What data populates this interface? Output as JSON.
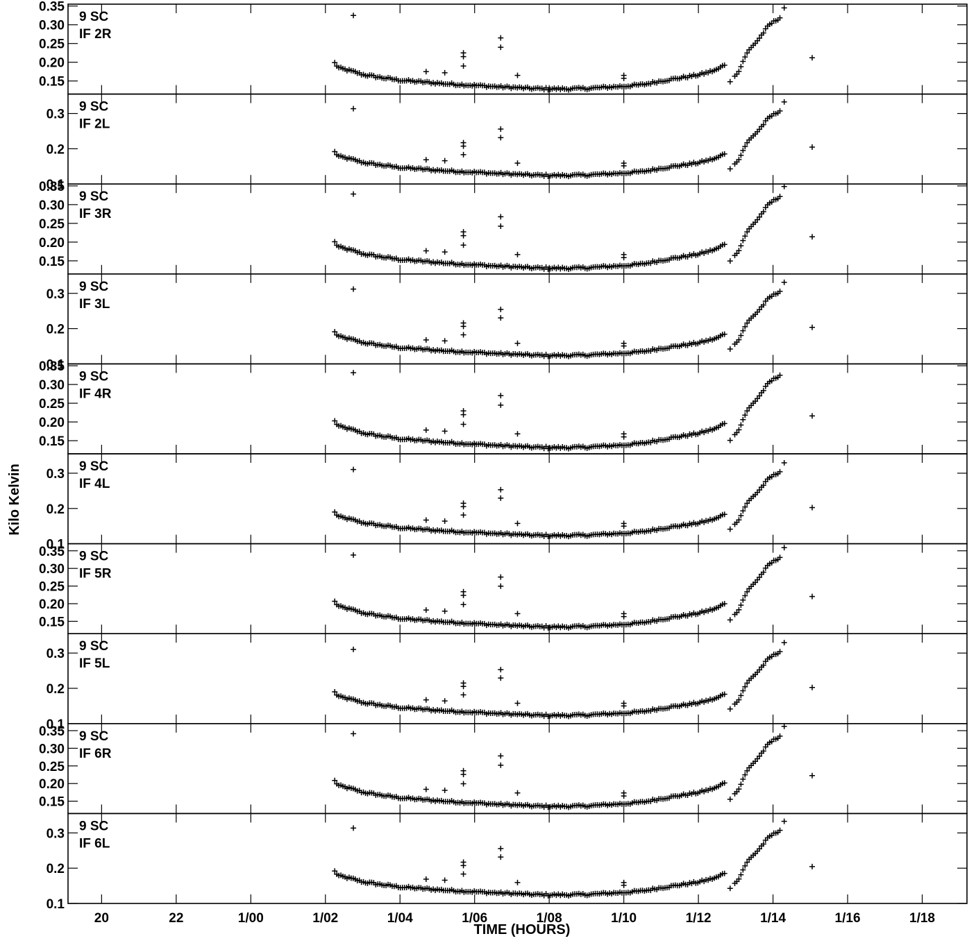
{
  "chart_data": {
    "type": "scatter",
    "marker": "plus",
    "xlabel": "TIME (HOURS)",
    "ylabel": "Kilo Kelvin",
    "x_range_hours": [
      19.1,
      43.2
    ],
    "x_ticks": [
      {
        "h": 20,
        "label": "20"
      },
      {
        "h": 22,
        "label": "22"
      },
      {
        "h": 24,
        "label": "1/00"
      },
      {
        "h": 26,
        "label": "1/02"
      },
      {
        "h": 28,
        "label": "1/04"
      },
      {
        "h": 30,
        "label": "1/06"
      },
      {
        "h": 32,
        "label": "1/08"
      },
      {
        "h": 34,
        "label": "1/10"
      },
      {
        "h": 36,
        "label": "1/12"
      },
      {
        "h": 38,
        "label": "1/14"
      },
      {
        "h": 40,
        "label": "1/16"
      },
      {
        "h": 42,
        "label": "1/18"
      }
    ],
    "series_profile": {
      "x": [
        26.25,
        26.35,
        26.75,
        27.0,
        27.5,
        28.0,
        28.5,
        28.9,
        29.3,
        29.7,
        30.2,
        30.7,
        31.0,
        31.5,
        32.0,
        32.5,
        33.0,
        33.5,
        34.0,
        34.5,
        35.0,
        35.5,
        36.0,
        36.5,
        36.8,
        37.0,
        37.3,
        37.6,
        37.9,
        38.2
      ],
      "y": [
        0.198,
        0.185,
        0.175,
        0.167,
        0.159,
        0.152,
        0.148,
        0.145,
        0.142,
        0.14,
        0.137,
        0.134,
        0.133,
        0.13,
        0.129,
        0.129,
        0.13,
        0.133,
        0.136,
        0.14,
        0.15,
        0.158,
        0.166,
        0.18,
        0.2,
        0.16,
        0.225,
        0.26,
        0.3,
        0.32
      ]
    },
    "series_outliers": {
      "x": [
        26.75,
        28.7,
        29.2,
        29.7,
        29.7,
        29.7,
        30.7,
        30.7,
        31.15,
        34.0,
        34.0,
        36.85,
        38.3,
        39.05
      ],
      "y": [
        0.325,
        0.175,
        0.172,
        0.225,
        0.215,
        0.19,
        0.265,
        0.24,
        0.165,
        0.165,
        0.157,
        0.148,
        0.345,
        0.212
      ]
    },
    "panels": [
      {
        "label1": "9 SC",
        "label2": "IF 2R",
        "ylim": [
          0.115,
          0.355
        ],
        "yticks": [
          0.15,
          0.2,
          0.25,
          0.3,
          0.35
        ],
        "ytick_labels": [
          "0.15",
          "0.20",
          "0.25",
          "0.30",
          "0.35"
        ],
        "scale": 1.0
      },
      {
        "label1": "9 SC",
        "label2": "IF 2L",
        "ylim": [
          0.1,
          0.355
        ],
        "yticks": [
          0.1,
          0.2,
          0.3
        ],
        "ytick_labels": [
          "0.1",
          "0.2",
          "0.3"
        ],
        "scale": 0.965
      },
      {
        "label1": "9 SC",
        "label2": "IF 3R",
        "ylim": [
          0.115,
          0.355
        ],
        "yticks": [
          0.15,
          0.2,
          0.25,
          0.3,
          0.35
        ],
        "ytick_labels": [
          "0.15",
          "0.20",
          "0.25",
          "0.30",
          "0.35"
        ],
        "scale": 1.01
      },
      {
        "label1": "9 SC",
        "label2": "IF 3L",
        "ylim": [
          0.1,
          0.355
        ],
        "yticks": [
          0.1,
          0.2,
          0.3
        ],
        "ytick_labels": [
          "0.1",
          "0.2",
          "0.3"
        ],
        "scale": 0.96
      },
      {
        "label1": "9 SC",
        "label2": "IF 4R",
        "ylim": [
          0.115,
          0.355
        ],
        "yticks": [
          0.15,
          0.2,
          0.25,
          0.3,
          0.35
        ],
        "ytick_labels": [
          "0.15",
          "0.20",
          "0.25",
          "0.30",
          "0.35"
        ],
        "scale": 1.02
      },
      {
        "label1": "9 SC",
        "label2": "IF 4L",
        "ylim": [
          0.1,
          0.355
        ],
        "yticks": [
          0.1,
          0.2,
          0.3
        ],
        "ytick_labels": [
          "0.1",
          "0.2",
          "0.3"
        ],
        "scale": 0.955
      },
      {
        "label1": "9 SC",
        "label2": "IF 5R",
        "ylim": [
          0.115,
          0.37
        ],
        "yticks": [
          0.15,
          0.2,
          0.25,
          0.3,
          0.35
        ],
        "ytick_labels": [
          "0.15",
          "0.20",
          "0.25",
          "0.30",
          "0.35"
        ],
        "scale": 1.04
      },
      {
        "label1": "9 SC",
        "label2": "IF 5L",
        "ylim": [
          0.1,
          0.355
        ],
        "yticks": [
          0.1,
          0.2,
          0.3
        ],
        "ytick_labels": [
          "0.1",
          "0.2",
          "0.3"
        ],
        "scale": 0.955
      },
      {
        "label1": "9 SC",
        "label2": "IF 6R",
        "ylim": [
          0.115,
          0.37
        ],
        "yticks": [
          0.15,
          0.2,
          0.25,
          0.3,
          0.35
        ],
        "ytick_labels": [
          "0.15",
          "0.20",
          "0.25",
          "0.30",
          "0.35"
        ],
        "scale": 1.05
      },
      {
        "label1": "9 SC",
        "label2": "IF 6L",
        "ylim": [
          0.1,
          0.355
        ],
        "yticks": [
          0.1,
          0.2,
          0.3
        ],
        "ytick_labels": [
          "0.1",
          "0.2",
          "0.3"
        ],
        "scale": 0.965
      }
    ]
  }
}
